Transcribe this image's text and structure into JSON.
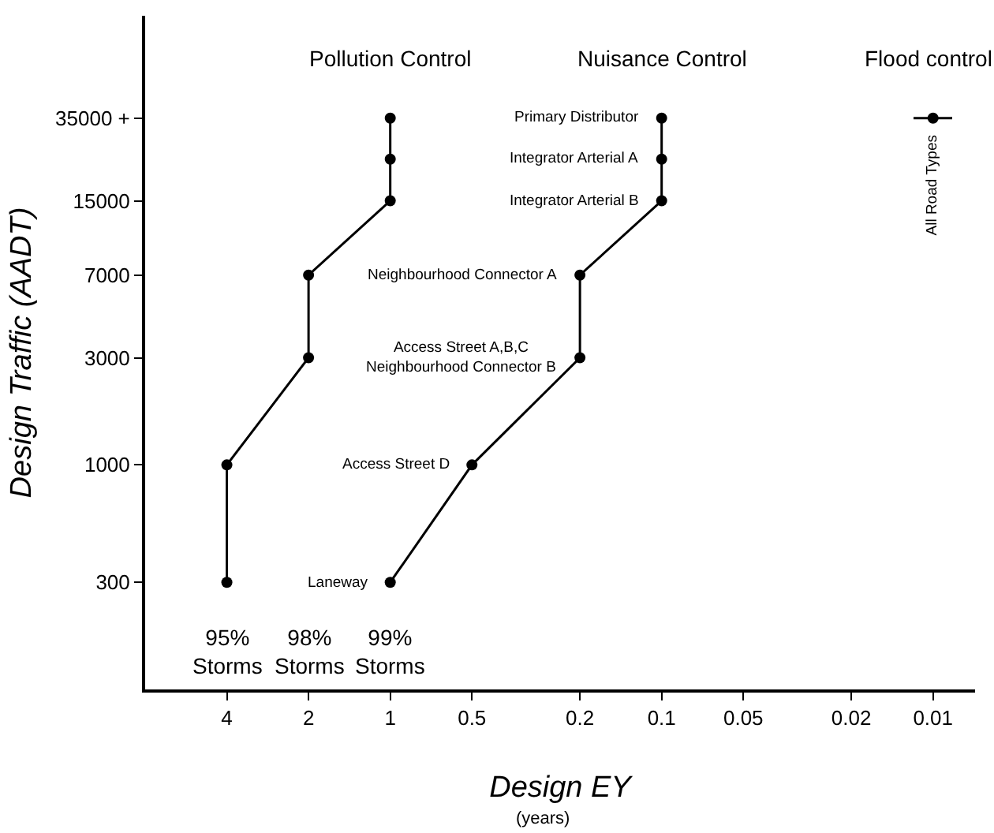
{
  "chart_data": {
    "type": "line",
    "xlabel": "Design EY",
    "ylabel": "Design Traffic (AADT)",
    "log": "xy",
    "xlim": [
      8,
      0.007
    ],
    "ylim": [
      100,
      100000
    ],
    "xticks": [
      4,
      2,
      1,
      0.5,
      0.2,
      0.1,
      0.05,
      0.02,
      0.01
    ],
    "yticks": [
      300,
      1000,
      3000,
      7000,
      15000,
      {
        "value": 35000,
        "label": "35000 +"
      }
    ],
    "grid": false,
    "legend": false,
    "marker": "circle",
    "line_style": "solid",
    "series": [
      {
        "name": "Pollution Control",
        "color": "#000000",
        "x": [
          1,
          1,
          1,
          2,
          2,
          4,
          4
        ],
        "values": [
          35000,
          23000,
          15000,
          7000,
          3000,
          1000,
          300
        ]
      },
      {
        "name": "Nuisance Control",
        "color": "#000000",
        "x": [
          0.1,
          0.1,
          0.1,
          0.2,
          0.2,
          0.5,
          1
        ],
        "values": [
          35000,
          23000,
          15000,
          7000,
          3000,
          1000,
          300
        ]
      },
      {
        "name": "Flood control",
        "color": "#000000",
        "x": [
          0.01
        ],
        "values": [
          35000
        ],
        "xerrors": [
          [
            0.0085,
            0.0118
          ]
        ]
      }
    ],
    "annotations": [
      "Primary Distributor",
      "Integrator Arterial A",
      "Integrator Arterial B",
      "Neighbourhood Connector A",
      "Access Street A,B,C\nNeighbourhood Connector B",
      "Access Street D",
      "Laneway",
      "All Road Types",
      "95%\nStorms",
      "98%\nStorms",
      "99%\nStorms",
      "(years)"
    ]
  }
}
